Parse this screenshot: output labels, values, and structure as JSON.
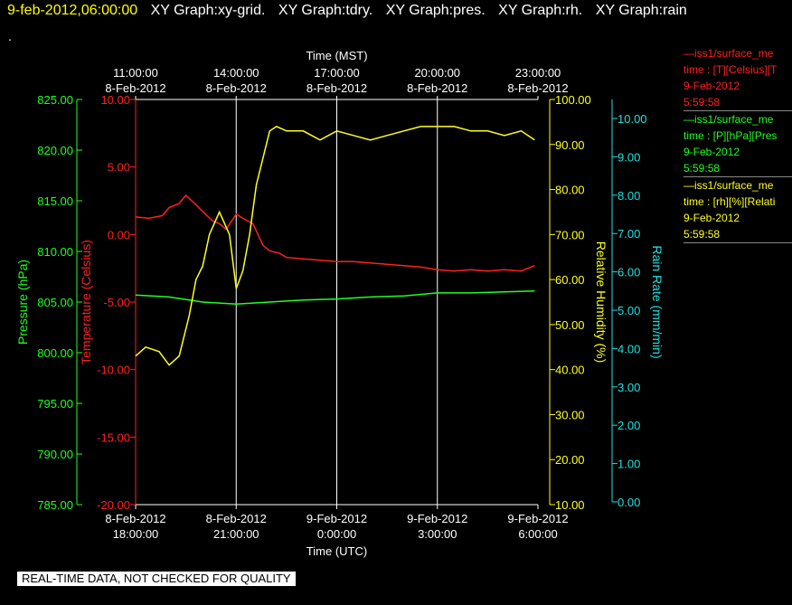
{
  "header": {
    "timestamp": "9-feb-2012,06:00:00",
    "graphs": [
      "XY Graph:xy-grid.",
      "XY Graph:tdry.",
      "XY Graph:pres.",
      "XY Graph:rh.",
      "XY Graph:rain"
    ],
    "dot": "."
  },
  "footer_note": "REAL-TIME DATA, NOT CHECKED FOR QUALITY",
  "legend": [
    {
      "color": "#ff2020",
      "lines": [
        "—iss1/surface_me",
        "time : [T][Celsius][T",
        "9-Feb-2012",
        "5:59:58"
      ]
    },
    {
      "color": "#20ff20",
      "lines": [
        "—iss1/surface_me",
        "time : [P][hPa][Pres",
        "9-Feb-2012",
        "5:59:58"
      ]
    },
    {
      "color": "#ffff20",
      "lines": [
        "—iss1/surface_me",
        "time : [rh][%][Relati",
        "9-Feb-2012",
        "5:59:58"
      ]
    }
  ],
  "chart_data": {
    "type": "line",
    "x_top": {
      "label": "Time (MST)",
      "ticks": [
        {
          "hour": 3,
          "l1": "11:00:00",
          "l2": "8-Feb-2012"
        },
        {
          "hour": 6,
          "l1": "14:00:00",
          "l2": "8-Feb-2012"
        },
        {
          "hour": 9,
          "l1": "17:00:00",
          "l2": "8-Feb-2012"
        },
        {
          "hour": 12,
          "l1": "20:00:00",
          "l2": "8-Feb-2012"
        },
        {
          "hour": 15,
          "l1": "23:00:00",
          "l2": "8-Feb-2012"
        }
      ]
    },
    "x_bottom": {
      "label": "Time (UTC)",
      "ticks": [
        {
          "hour": 0,
          "l1": "8-Feb-2012",
          "l2": "18:00:00"
        },
        {
          "hour": 3,
          "l1": "8-Feb-2012",
          "l2": "21:00:00"
        },
        {
          "hour": 6,
          "l1": "9-Feb-2012",
          "l2": "0:00:00"
        },
        {
          "hour": 9,
          "l1": "9-Feb-2012",
          "l2": "3:00:00"
        },
        {
          "hour": 12,
          "l1": "9-Feb-2012",
          "l2": "6:00:00"
        }
      ]
    },
    "xlim_hours": [
      0,
      12
    ],
    "grid": true,
    "axes": {
      "pressure": {
        "label": "Pressure (hPa)",
        "color": "#20ff20",
        "range": [
          785,
          825
        ],
        "ticks": [
          "785.00",
          "790.00",
          "795.00",
          "800.00",
          "805.00",
          "810.00",
          "815.00",
          "820.00",
          "825.00"
        ]
      },
      "temperature": {
        "label": "Temperature (Celsius)",
        "color": "#ff2020",
        "range": [
          -20,
          10
        ],
        "ticks": [
          "-20.00",
          "-15.00",
          "-10.00",
          "-5.00",
          "0.00",
          "5.00",
          "10.00"
        ]
      },
      "humidity": {
        "label": "Relative Humidity (%)",
        "color": "#ffff20",
        "range": [
          10,
          100
        ],
        "ticks": [
          "10.00",
          "20.00",
          "30.00",
          "40.00",
          "50.00",
          "60.00",
          "70.00",
          "80.00",
          "90.00",
          "100.00"
        ]
      },
      "rain": {
        "label": "Rain Rate (mm/min)",
        "color": "#20e0e0",
        "range": [
          0,
          10.5
        ],
        "ticks": [
          "0.00",
          "1.00",
          "2.00",
          "3.00",
          "4.00",
          "5.00",
          "6.00",
          "7.00",
          "8.00",
          "9.00",
          "10.00"
        ]
      }
    },
    "series": [
      {
        "name": "Temperature",
        "axis": "temperature",
        "color": "#ff2020",
        "x": [
          0,
          0.4,
          0.8,
          1.0,
          1.3,
          1.5,
          1.8,
          2.0,
          2.3,
          2.5,
          2.7,
          3.0,
          3.2,
          3.5,
          3.8,
          4.0,
          4.3,
          4.5,
          5.0,
          5.5,
          6.0,
          6.5,
          7.0,
          7.5,
          8.0,
          8.5,
          9.0,
          9.5,
          10.0,
          10.5,
          11.0,
          11.5,
          11.9
        ],
        "y": [
          1.3,
          1.2,
          1.4,
          2.0,
          2.3,
          2.9,
          2.2,
          1.7,
          1.0,
          0.8,
          0.4,
          1.5,
          1.2,
          0.8,
          -0.8,
          -1.2,
          -1.4,
          -1.7,
          -1.8,
          -1.9,
          -2.0,
          -2.0,
          -2.1,
          -2.2,
          -2.3,
          -2.4,
          -2.6,
          -2.7,
          -2.6,
          -2.7,
          -2.6,
          -2.7,
          -2.3
        ]
      },
      {
        "name": "Pressure",
        "axis": "pressure",
        "color": "#20ff20",
        "x": [
          0,
          1.0,
          2.0,
          3.0,
          4.0,
          5.0,
          6.0,
          7.0,
          8.0,
          9.0,
          10.0,
          11.0,
          11.9
        ],
        "y": [
          805.7,
          805.5,
          805.0,
          804.8,
          805.0,
          805.2,
          805.3,
          805.5,
          805.6,
          805.9,
          805.9,
          806.0,
          806.1
        ]
      },
      {
        "name": "Relative Humidity",
        "axis": "humidity",
        "color": "#ffff20",
        "x": [
          0,
          0.3,
          0.7,
          1.0,
          1.3,
          1.6,
          1.8,
          2.0,
          2.2,
          2.5,
          2.8,
          3.0,
          3.2,
          3.4,
          3.6,
          3.8,
          4.0,
          4.2,
          4.5,
          5.0,
          5.5,
          6.0,
          6.5,
          7.0,
          7.5,
          8.0,
          8.5,
          9.0,
          9.5,
          10.0,
          10.5,
          11.0,
          11.5,
          11.9
        ],
        "y": [
          43,
          45,
          44,
          41,
          43,
          52,
          60,
          63,
          70,
          75,
          70,
          58,
          62,
          70,
          81,
          87,
          93,
          94,
          93,
          93,
          91,
          93,
          92,
          91,
          92,
          93,
          94,
          94,
          94,
          93,
          93,
          92,
          93,
          91
        ]
      }
    ]
  }
}
